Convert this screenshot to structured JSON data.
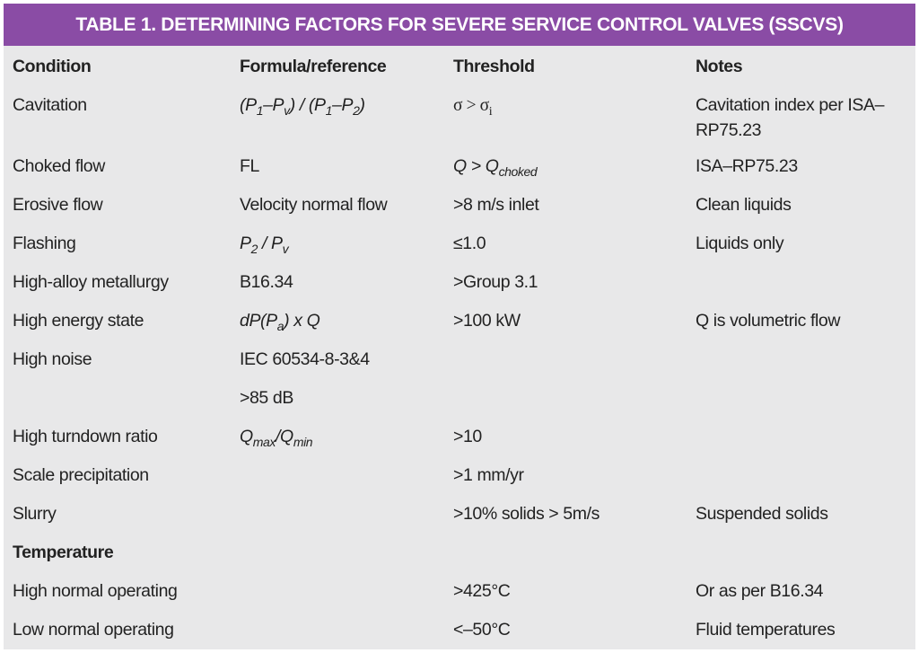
{
  "title": "TABLE 1. DETERMINING FACTORS FOR SEVERE SERVICE CONTROL VALVES (SSCVS)",
  "table": {
    "columns": [
      "Condition",
      "Formula/reference",
      "Threshold",
      "Notes"
    ],
    "rows": [
      [
        "Cavitation",
        {
          "parts": [
            {
              "text": "(P",
              "italic": true
            },
            {
              "text": "1",
              "italic": true,
              "sub": true
            },
            {
              "text": "–P",
              "italic": true
            },
            {
              "text": "v",
              "italic": true,
              "sub": true
            },
            {
              "text": ") / (P",
              "italic": true
            },
            {
              "text": "1",
              "italic": true,
              "sub": true
            },
            {
              "text": "–P",
              "italic": true
            },
            {
              "text": "2",
              "italic": true,
              "sub": true
            },
            {
              "text": ")",
              "italic": true
            }
          ]
        },
        {
          "parts": [
            {
              "text": "σ > σ",
              "serif": true
            },
            {
              "text": "i",
              "serif": true,
              "sub": true
            }
          ]
        },
        "Cavitation index per ISA–RP75.23"
      ],
      [
        "Choked flow",
        "FL",
        {
          "parts": [
            {
              "text": "Q > Q",
              "italic": true
            },
            {
              "text": "choked",
              "italic": true,
              "sub": true
            }
          ]
        },
        "ISA–RP75.23"
      ],
      [
        "Erosive flow",
        "Velocity normal flow",
        ">8 m/s inlet",
        "Clean liquids"
      ],
      [
        "Flashing",
        {
          "parts": [
            {
              "text": "P",
              "italic": true
            },
            {
              "text": "2",
              "italic": true,
              "sub": true
            },
            {
              "text": " / P",
              "italic": true
            },
            {
              "text": "v",
              "italic": true,
              "sub": true
            }
          ]
        },
        "≤1.0",
        "Liquids only"
      ],
      [
        "High-alloy metallurgy",
        "B16.34",
        ">Group 3.1",
        null
      ],
      [
        "High energy state",
        {
          "parts": [
            {
              "text": "dP(P",
              "italic": true
            },
            {
              "text": "a",
              "italic": true,
              "sub": true
            },
            {
              "text": ") x Q",
              "italic": true
            }
          ]
        },
        ">100 kW",
        "Q is volumetric flow"
      ],
      [
        "High noise",
        "IEC 60534-8-3&4",
        null,
        null
      ],
      [
        null,
        ">85 dB",
        null,
        null
      ],
      [
        "High turndown ratio",
        {
          "parts": [
            {
              "text": "Q",
              "italic": true
            },
            {
              "text": "max",
              "italic": true,
              "sub": true
            },
            {
              "text": "/Q",
              "italic": true
            },
            {
              "text": "min",
              "italic": true,
              "sub": true
            }
          ]
        },
        ">10",
        null
      ],
      [
        "Scale precipitation",
        null,
        ">1 mm/yr",
        null
      ],
      [
        "Slurry",
        null,
        ">10% solids > 5m/s",
        "Suspended solids"
      ],
      [
        {
          "text": "Temperature",
          "bold": true
        },
        null,
        null,
        null
      ],
      [
        "High normal operating",
        null,
        ">425°C",
        "Or as per B16.34"
      ],
      [
        "Low normal operating",
        null,
        "<–50°C",
        "Fluid temperatures"
      ]
    ]
  }
}
